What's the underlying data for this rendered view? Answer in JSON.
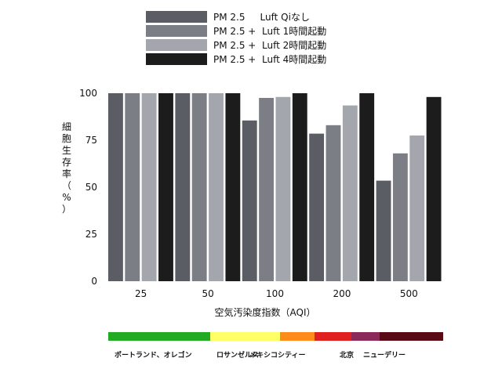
{
  "chart_data": {
    "type": "bar",
    "title": "",
    "xlabel": "空気汚染度指数（AQI）",
    "ylabel": "細胞生存率（%）",
    "categories": [
      "25",
      "50",
      "100",
      "200",
      "500"
    ],
    "ylim": [
      0,
      100
    ],
    "yticks": [
      0,
      25,
      50,
      75,
      100
    ],
    "grid": false,
    "legend_position": "top",
    "series": [
      {
        "name": "PM 2.5     Luft Qiなし",
        "color": "#5a5d63",
        "values": [
          100,
          100,
          85.5,
          78.5,
          53.5
        ]
      },
      {
        "name": "PM 2.5 +  Luft 1時間起動",
        "color": "#7b7e85",
        "values": [
          100,
          100,
          97.5,
          83,
          68
        ]
      },
      {
        "name": "PM 2.5 +  Luft 2時間起動",
        "color": "#a3a6ac",
        "values": [
          100,
          100,
          98,
          93.5,
          77.5
        ]
      },
      {
        "name": "PM 2.5 +  Luft 4時間起動",
        "color": "#1c1c1c",
        "values": [
          100,
          100,
          100,
          100,
          98
        ]
      }
    ]
  },
  "aqi_scale": [
    {
      "label": "ポートランド、オレゴン",
      "color": "#22aa22"
    },
    {
      "label": "ロサンゼルス",
      "color": "#ffff66"
    },
    {
      "label": "メキシコシティー",
      "color": "#ff8c1a"
    },
    {
      "label": "北京",
      "color": "#e02020"
    },
    {
      "label": "ニューデリー",
      "color": "#8b2a5a"
    },
    {
      "label": "",
      "color": "#5a0a14"
    }
  ]
}
